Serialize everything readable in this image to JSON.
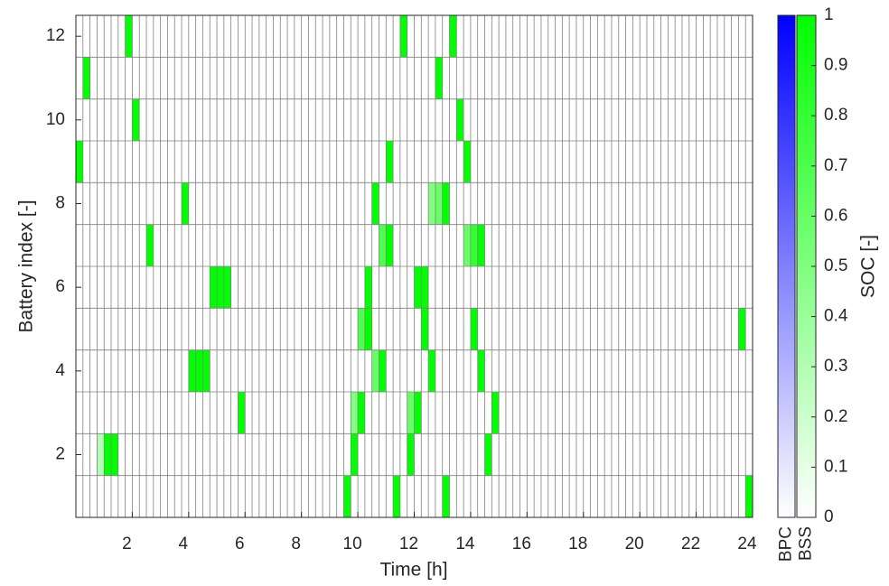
{
  "chart_data": {
    "type": "heatmap",
    "xlabel": "Time [h]",
    "ylabel": "Battery index [-]",
    "xlim": [
      0,
      24
    ],
    "xticks": [
      2,
      4,
      6,
      8,
      10,
      12,
      14,
      16,
      18,
      20,
      22,
      24
    ],
    "ylim": [
      0.5,
      12.5
    ],
    "yticks": [
      2,
      4,
      6,
      8,
      10,
      12
    ],
    "cell_hours": 0.25,
    "colorbar": {
      "label": "SOC [-]",
      "lim": [
        0,
        1
      ],
      "ticks": [
        0,
        0.1,
        0.2,
        0.3,
        0.4,
        0.5,
        0.6,
        0.7,
        0.8,
        0.9,
        1
      ],
      "columns": [
        {
          "name": "BPC",
          "color": "#0000ff"
        },
        {
          "name": "BSS",
          "color": "#00ff00"
        }
      ]
    },
    "cells": [
      {
        "battery": 12,
        "t": 1.75,
        "soc": 1
      },
      {
        "battery": 12,
        "t": 11.5,
        "soc": 1
      },
      {
        "battery": 12,
        "t": 13.25,
        "soc": 1
      },
      {
        "battery": 11,
        "t": 0.25,
        "soc": 1
      },
      {
        "battery": 11,
        "t": 12.75,
        "soc": 1
      },
      {
        "battery": 10,
        "t": 2,
        "soc": 1
      },
      {
        "battery": 10,
        "t": 13.5,
        "soc": 1
      },
      {
        "battery": 9,
        "t": 0,
        "soc": 1
      },
      {
        "battery": 9,
        "t": 11,
        "soc": 1
      },
      {
        "battery": 9,
        "t": 13.75,
        "soc": 1
      },
      {
        "battery": 8,
        "t": 3.75,
        "soc": 1
      },
      {
        "battery": 8,
        "t": 10.5,
        "soc": 1
      },
      {
        "battery": 8,
        "t": 12.5,
        "soc": 0.5
      },
      {
        "battery": 8,
        "t": 12.75,
        "soc": 0.6
      },
      {
        "battery": 8,
        "t": 13,
        "soc": 1
      },
      {
        "battery": 7,
        "t": 2.5,
        "soc": 1
      },
      {
        "battery": 7,
        "t": 10.75,
        "soc": 0.7
      },
      {
        "battery": 7,
        "t": 11,
        "soc": 1
      },
      {
        "battery": 7,
        "t": 13.75,
        "soc": 0.6
      },
      {
        "battery": 7,
        "t": 14,
        "soc": 0.8
      },
      {
        "battery": 7,
        "t": 14.25,
        "soc": 1
      },
      {
        "battery": 6,
        "t": 4.75,
        "soc": 1
      },
      {
        "battery": 6,
        "t": 5,
        "soc": 1
      },
      {
        "battery": 6,
        "t": 5.25,
        "soc": 1
      },
      {
        "battery": 6,
        "t": 10.25,
        "soc": 1
      },
      {
        "battery": 6,
        "t": 12,
        "soc": 1
      },
      {
        "battery": 6,
        "t": 12.25,
        "soc": 1
      },
      {
        "battery": 5,
        "t": 10,
        "soc": 0.7
      },
      {
        "battery": 5,
        "t": 10.25,
        "soc": 1
      },
      {
        "battery": 5,
        "t": 12.25,
        "soc": 1
      },
      {
        "battery": 5,
        "t": 14,
        "soc": 1
      },
      {
        "battery": 5,
        "t": 23.5,
        "soc": 1
      },
      {
        "battery": 4,
        "t": 4,
        "soc": 1
      },
      {
        "battery": 4,
        "t": 4.25,
        "soc": 1
      },
      {
        "battery": 4,
        "t": 4.5,
        "soc": 1
      },
      {
        "battery": 4,
        "t": 10.5,
        "soc": 0.6
      },
      {
        "battery": 4,
        "t": 10.75,
        "soc": 1
      },
      {
        "battery": 4,
        "t": 12.5,
        "soc": 1
      },
      {
        "battery": 4,
        "t": 14.25,
        "soc": 1
      },
      {
        "battery": 3,
        "t": 5.75,
        "soc": 1
      },
      {
        "battery": 3,
        "t": 9.75,
        "soc": 0.5
      },
      {
        "battery": 3,
        "t": 10,
        "soc": 1
      },
      {
        "battery": 3,
        "t": 11.75,
        "soc": 0.6
      },
      {
        "battery": 3,
        "t": 12,
        "soc": 1
      },
      {
        "battery": 3,
        "t": 14.75,
        "soc": 1
      },
      {
        "battery": 2,
        "t": 0.75,
        "soc": 0.3
      },
      {
        "battery": 2,
        "t": 1,
        "soc": 1
      },
      {
        "battery": 2,
        "t": 1.25,
        "soc": 1
      },
      {
        "battery": 2,
        "t": 9.75,
        "soc": 1
      },
      {
        "battery": 2,
        "t": 11.75,
        "soc": 1
      },
      {
        "battery": 2,
        "t": 14.5,
        "soc": 1
      },
      {
        "battery": 1,
        "t": 9.5,
        "soc": 1
      },
      {
        "battery": 1,
        "t": 11.25,
        "soc": 1
      },
      {
        "battery": 1,
        "t": 13,
        "soc": 1
      },
      {
        "battery": 1,
        "t": 23.75,
        "soc": 1
      }
    ]
  }
}
